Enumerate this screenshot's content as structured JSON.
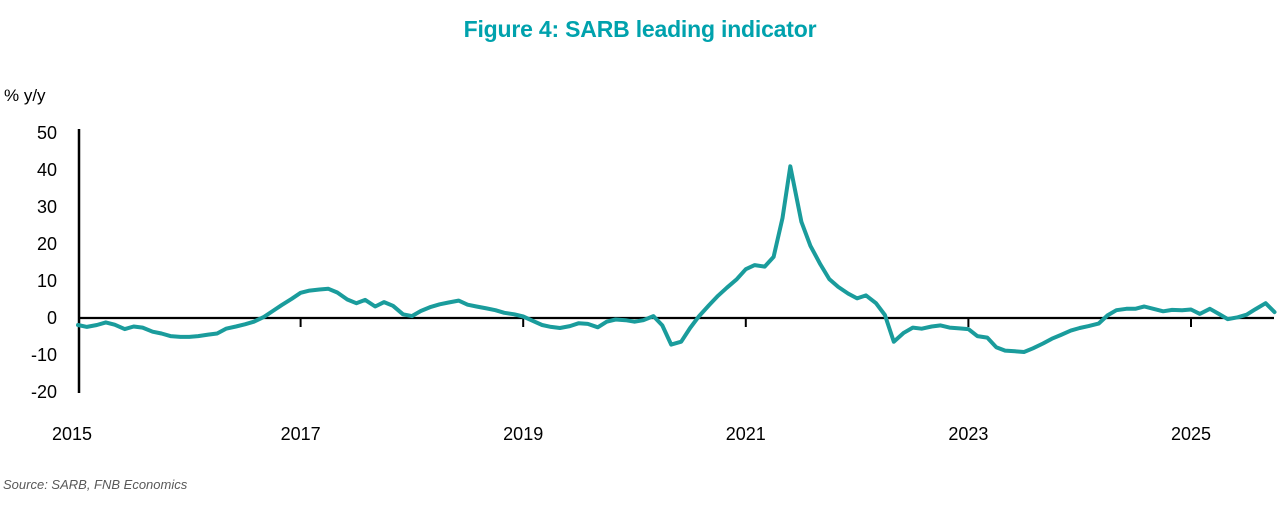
{
  "title": "Figure 4: SARB leading indicator",
  "source_note": "Source: SARB, FNB Economics",
  "chart_data": {
    "type": "line",
    "title": "Figure 4: SARB leading indicator",
    "xlabel": "",
    "ylabel": "% y/y",
    "x_ticks": [
      2015,
      2017,
      2019,
      2021,
      2023,
      2025
    ],
    "y_ticks": [
      50,
      40,
      30,
      20,
      10,
      0,
      -10,
      -20
    ],
    "ylim": [
      -20,
      50
    ],
    "xlim": [
      2015,
      2025.78
    ],
    "grid": false,
    "legend": "none",
    "axis_color": "#000000",
    "title_color": "#00a2ad",
    "series": [
      {
        "name": "SARB leading indicator, % y/y (monthly)",
        "color": "#1a9c9c",
        "points": [
          [
            2015.0,
            -1.9
          ],
          [
            2015.08,
            -2.4
          ],
          [
            2015.17,
            -1.9
          ],
          [
            2015.25,
            -1.2
          ],
          [
            2015.33,
            -1.8
          ],
          [
            2015.42,
            -3.0
          ],
          [
            2015.5,
            -2.3
          ],
          [
            2015.58,
            -2.6
          ],
          [
            2015.67,
            -3.7
          ],
          [
            2015.75,
            -4.2
          ],
          [
            2015.83,
            -4.9
          ],
          [
            2015.92,
            -5.1
          ],
          [
            2016.0,
            -5.1
          ],
          [
            2016.08,
            -4.9
          ],
          [
            2016.17,
            -4.5
          ],
          [
            2016.25,
            -4.2
          ],
          [
            2016.33,
            -2.9
          ],
          [
            2016.42,
            -2.3
          ],
          [
            2016.5,
            -1.7
          ],
          [
            2016.58,
            -1.0
          ],
          [
            2016.67,
            0.3
          ],
          [
            2016.75,
            1.9
          ],
          [
            2016.83,
            3.5
          ],
          [
            2016.92,
            5.2
          ],
          [
            2017.0,
            6.8
          ],
          [
            2017.08,
            7.4
          ],
          [
            2017.17,
            7.7
          ],
          [
            2017.25,
            7.9
          ],
          [
            2017.33,
            6.9
          ],
          [
            2017.42,
            5.0
          ],
          [
            2017.5,
            4.0
          ],
          [
            2017.58,
            4.9
          ],
          [
            2017.67,
            3.1
          ],
          [
            2017.75,
            4.3
          ],
          [
            2017.83,
            3.3
          ],
          [
            2017.92,
            1.0
          ],
          [
            2018.0,
            0.5
          ],
          [
            2018.08,
            1.9
          ],
          [
            2018.17,
            3.0
          ],
          [
            2018.25,
            3.7
          ],
          [
            2018.33,
            4.2
          ],
          [
            2018.42,
            4.7
          ],
          [
            2018.5,
            3.6
          ],
          [
            2018.58,
            3.1
          ],
          [
            2018.67,
            2.6
          ],
          [
            2018.75,
            2.1
          ],
          [
            2018.83,
            1.4
          ],
          [
            2018.92,
            1.0
          ],
          [
            2019.0,
            0.4
          ],
          [
            2019.08,
            -0.7
          ],
          [
            2019.17,
            -1.9
          ],
          [
            2019.25,
            -2.4
          ],
          [
            2019.33,
            -2.7
          ],
          [
            2019.42,
            -2.2
          ],
          [
            2019.5,
            -1.4
          ],
          [
            2019.58,
            -1.6
          ],
          [
            2019.67,
            -2.5
          ],
          [
            2019.75,
            -1.0
          ],
          [
            2019.83,
            -0.4
          ],
          [
            2019.92,
            -0.6
          ],
          [
            2020.0,
            -1.0
          ],
          [
            2020.08,
            -0.6
          ],
          [
            2020.17,
            0.5
          ],
          [
            2020.25,
            -2.0
          ],
          [
            2020.33,
            -7.2
          ],
          [
            2020.42,
            -6.4
          ],
          [
            2020.5,
            -2.7
          ],
          [
            2020.58,
            0.5
          ],
          [
            2020.67,
            3.5
          ],
          [
            2020.75,
            6.0
          ],
          [
            2020.83,
            8.2
          ],
          [
            2020.92,
            10.5
          ],
          [
            2021.0,
            13.2
          ],
          [
            2021.08,
            14.3
          ],
          [
            2021.17,
            13.9
          ],
          [
            2021.25,
            16.5
          ],
          [
            2021.33,
            27.0
          ],
          [
            2021.4,
            41.0
          ],
          [
            2021.5,
            26.0
          ],
          [
            2021.58,
            19.5
          ],
          [
            2021.67,
            14.5
          ],
          [
            2021.75,
            10.5
          ],
          [
            2021.83,
            8.4
          ],
          [
            2021.92,
            6.6
          ],
          [
            2022.0,
            5.3
          ],
          [
            2022.08,
            6.1
          ],
          [
            2022.17,
            4.0
          ],
          [
            2022.25,
            0.8
          ],
          [
            2022.33,
            -6.4
          ],
          [
            2022.42,
            -4.0
          ],
          [
            2022.5,
            -2.6
          ],
          [
            2022.58,
            -2.9
          ],
          [
            2022.67,
            -2.3
          ],
          [
            2022.75,
            -2.0
          ],
          [
            2022.83,
            -2.6
          ],
          [
            2022.92,
            -2.8
          ],
          [
            2023.0,
            -3.0
          ],
          [
            2023.08,
            -4.9
          ],
          [
            2023.17,
            -5.3
          ],
          [
            2023.25,
            -7.9
          ],
          [
            2023.33,
            -8.8
          ],
          [
            2023.42,
            -9.0
          ],
          [
            2023.5,
            -9.2
          ],
          [
            2023.58,
            -8.2
          ],
          [
            2023.67,
            -6.9
          ],
          [
            2023.75,
            -5.6
          ],
          [
            2023.83,
            -4.6
          ],
          [
            2023.92,
            -3.4
          ],
          [
            2024.0,
            -2.7
          ],
          [
            2024.08,
            -2.2
          ],
          [
            2024.17,
            -1.5
          ],
          [
            2024.25,
            0.7
          ],
          [
            2024.33,
            2.1
          ],
          [
            2024.42,
            2.5
          ],
          [
            2024.5,
            2.5
          ],
          [
            2024.58,
            3.1
          ],
          [
            2024.67,
            2.4
          ],
          [
            2024.75,
            1.8
          ],
          [
            2024.83,
            2.2
          ],
          [
            2024.92,
            2.1
          ],
          [
            2025.0,
            2.3
          ],
          [
            2025.08,
            1.1
          ],
          [
            2025.17,
            2.5
          ],
          [
            2025.25,
            1.1
          ],
          [
            2025.33,
            -0.3
          ],
          [
            2025.42,
            0.2
          ],
          [
            2025.5,
            0.9
          ],
          [
            2025.58,
            2.4
          ],
          [
            2025.67,
            4.0
          ],
          [
            2025.75,
            1.6
          ]
        ]
      }
    ]
  }
}
